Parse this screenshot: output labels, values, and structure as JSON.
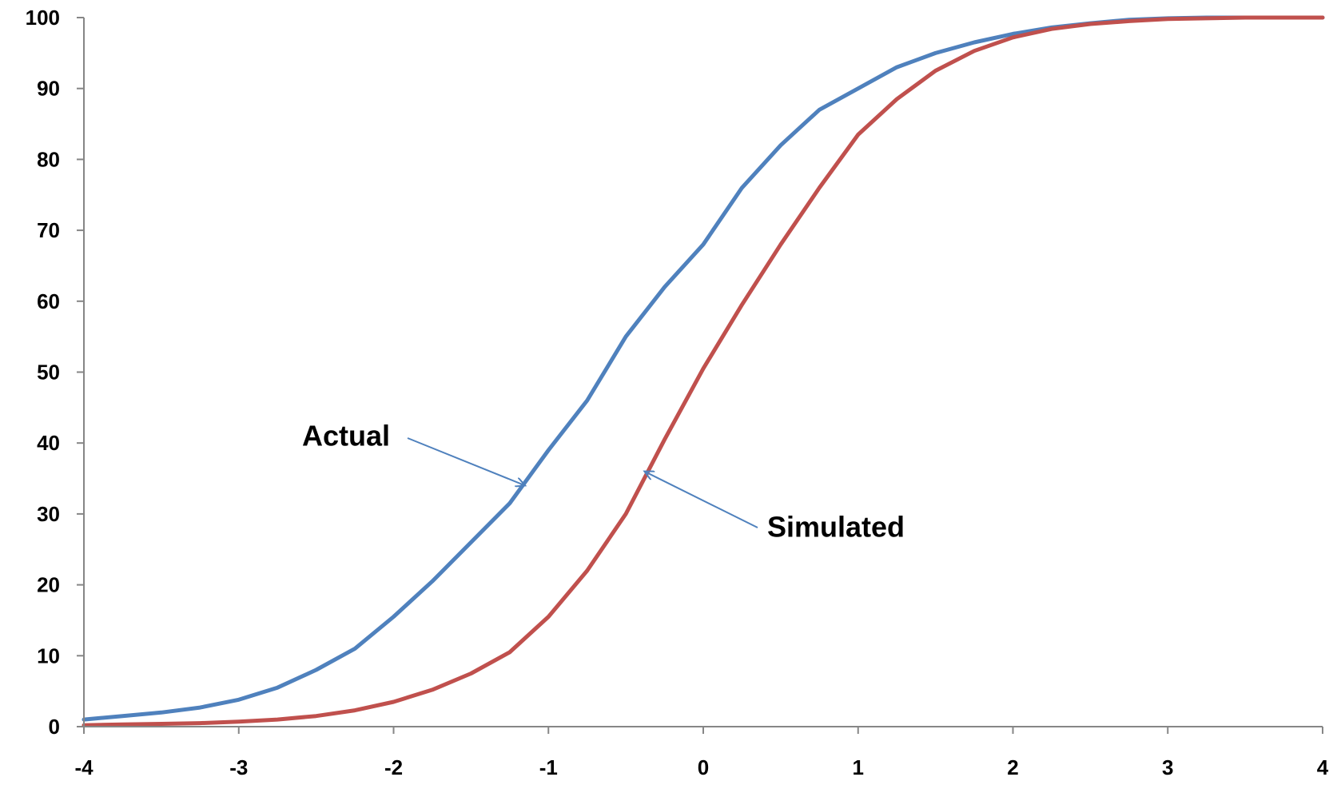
{
  "chart_data": {
    "type": "line",
    "title": "",
    "xlabel": "",
    "ylabel": "",
    "xlim": [
      -4,
      4
    ],
    "ylim": [
      0,
      100
    ],
    "x_ticks": [
      -4,
      -3,
      -2,
      -1,
      0,
      1,
      2,
      3,
      4
    ],
    "y_ticks": [
      0,
      10,
      20,
      30,
      40,
      50,
      60,
      70,
      80,
      90,
      100
    ],
    "grid": false,
    "legend": "none",
    "series": [
      {
        "id": "actual",
        "color": "#4F81BD",
        "x": [
          -4.0,
          -3.75,
          -3.5,
          -3.25,
          -3.0,
          -2.75,
          -2.5,
          -2.25,
          -2.0,
          -1.75,
          -1.5,
          -1.25,
          -1.1,
          -1.0,
          -0.75,
          -0.5,
          -0.25,
          0.0,
          0.25,
          0.5,
          0.75,
          1.0,
          1.25,
          1.5,
          1.75,
          2.0,
          2.25,
          2.5,
          2.75,
          3.0,
          3.25,
          3.5,
          3.75,
          4.0
        ],
        "y": [
          1.0,
          1.5,
          2.0,
          2.7,
          3.8,
          5.5,
          8.0,
          11.0,
          15.5,
          20.5,
          26.0,
          31.5,
          36.0,
          39.0,
          46.0,
          55.0,
          62.0,
          68.0,
          76.0,
          82.0,
          87.0,
          90.0,
          93.0,
          95.0,
          96.5,
          97.7,
          98.6,
          99.2,
          99.7,
          99.9,
          100.0,
          100.0,
          100.0,
          100.0
        ]
      },
      {
        "id": "simulated",
        "color": "#C0504D",
        "x": [
          -4.0,
          -3.75,
          -3.5,
          -3.25,
          -3.0,
          -2.75,
          -2.5,
          -2.25,
          -2.0,
          -1.75,
          -1.5,
          -1.25,
          -1.0,
          -0.75,
          -0.5,
          -0.25,
          0.0,
          0.25,
          0.5,
          0.75,
          1.0,
          1.25,
          1.5,
          1.75,
          2.0,
          2.25,
          2.5,
          2.75,
          3.0,
          3.25,
          3.5,
          3.75,
          4.0
        ],
        "y": [
          0.2,
          0.3,
          0.4,
          0.5,
          0.7,
          1.0,
          1.5,
          2.3,
          3.5,
          5.2,
          7.5,
          10.5,
          15.5,
          22.0,
          30.0,
          40.5,
          50.5,
          59.5,
          68.0,
          76.0,
          83.5,
          88.5,
          92.5,
          95.3,
          97.2,
          98.4,
          99.1,
          99.5,
          99.8,
          99.9,
          100.0,
          100.0,
          100.0
        ]
      }
    ],
    "annotations": [
      {
        "id": "actual",
        "text": "Actual",
        "series": "actual",
        "point_x": -1.15,
        "point_y": 34
      },
      {
        "id": "simulated",
        "text": "Simulated",
        "series": "simulated",
        "point_x": -0.38,
        "point_y": 36
      }
    ]
  }
}
